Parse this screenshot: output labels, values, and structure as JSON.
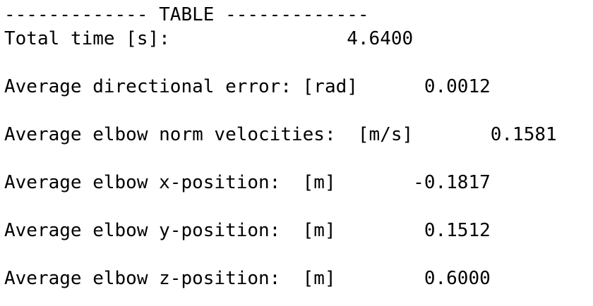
{
  "table": {
    "header": "------------- TABLE -------------",
    "lines": [
      "Total time [s]:                4.6400",
      "",
      "Average directional error: [rad]      0.0012",
      "",
      "Average elbow norm velocities:  [m/s]       0.1581",
      "",
      "Average elbow x-position:  [m]       -0.1817",
      "",
      "Average elbow y-position:  [m]        0.1512",
      "",
      "Average elbow z-position:  [m]        0.6000"
    ]
  }
}
